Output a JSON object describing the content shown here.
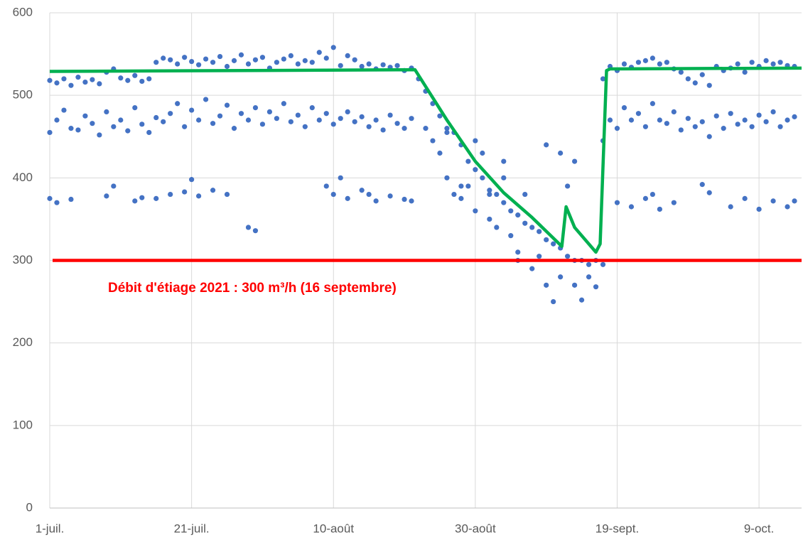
{
  "chart_data": {
    "type": "scatter",
    "color": "#4472c4",
    "xlim": [
      0,
      106
    ],
    "ylim": [
      0,
      600
    ],
    "xticks": [
      {
        "value": 0,
        "label": "1-juil."
      },
      {
        "value": 20,
        "label": "21-juil."
      },
      {
        "value": 40,
        "label": "10-août"
      },
      {
        "value": 60,
        "label": "30-août"
      },
      {
        "value": 80,
        "label": "19-sept."
      },
      {
        "value": 100,
        "label": "9-oct."
      }
    ],
    "yticks": [
      0,
      100,
      200,
      300,
      400,
      500,
      600
    ],
    "grid": true,
    "x": [
      0,
      1,
      2,
      3,
      4,
      5,
      6,
      7,
      8,
      9,
      10,
      11,
      12,
      13,
      14,
      15,
      16,
      17,
      18,
      19,
      20,
      21,
      22,
      23,
      24,
      25,
      26,
      27,
      28,
      29,
      30,
      31,
      32,
      33,
      34,
      35,
      36,
      37,
      38,
      39,
      40,
      41,
      42,
      43,
      44,
      45,
      46,
      47,
      48,
      49,
      50,
      51,
      0,
      1,
      2,
      3,
      4,
      5,
      6,
      7,
      8,
      9,
      10,
      11,
      12,
      13,
      14,
      15,
      16,
      17,
      18,
      19,
      20,
      21,
      22,
      23,
      24,
      25,
      26,
      27,
      28,
      29,
      30,
      31,
      32,
      33,
      34,
      35,
      36,
      37,
      38,
      39,
      40,
      41,
      42,
      43,
      44,
      45,
      46,
      47,
      48,
      49,
      50,
      51,
      0,
      1,
      3,
      8,
      9,
      12,
      13,
      15,
      17,
      19,
      20,
      21,
      23,
      25,
      28,
      29,
      39,
      40,
      41,
      42,
      44,
      45,
      46,
      48,
      50,
      51,
      52,
      53,
      54,
      55,
      56,
      57,
      58,
      59,
      60,
      61,
      62,
      63,
      64,
      65,
      66,
      67,
      68,
      69,
      70,
      71,
      72,
      73,
      74,
      75,
      76,
      77,
      53,
      54,
      55,
      56,
      57,
      58,
      59,
      60,
      61,
      62,
      63,
      64,
      65,
      66,
      67,
      68,
      69,
      70,
      71,
      72,
      73,
      74,
      75,
      76,
      77,
      78,
      56,
      60,
      64,
      70,
      72,
      74,
      62,
      66,
      58,
      78,
      79,
      80,
      81,
      82,
      83,
      84,
      85,
      86,
      87,
      88,
      89,
      90,
      91,
      92,
      93,
      94,
      95,
      96,
      97,
      98,
      99,
      100,
      101,
      102,
      103,
      104,
      105,
      78,
      79,
      80,
      81,
      82,
      83,
      84,
      85,
      86,
      87,
      88,
      89,
      90,
      91,
      92,
      93,
      94,
      95,
      96,
      97,
      98,
      99,
      100,
      101,
      102,
      103,
      104,
      105,
      80,
      82,
      84,
      85,
      86,
      88,
      92,
      93,
      96,
      98,
      100,
      102,
      104,
      105
    ],
    "values": [
      518,
      515,
      520,
      512,
      522,
      516,
      519,
      514,
      528,
      532,
      521,
      518,
      524,
      517,
      520,
      540,
      545,
      543,
      538,
      546,
      541,
      537,
      544,
      540,
      547,
      535,
      542,
      549,
      538,
      543,
      546,
      533,
      540,
      544,
      548,
      538,
      542,
      540,
      552,
      545,
      558,
      536,
      548,
      543,
      535,
      538,
      532,
      537,
      534,
      536,
      530,
      533,
      455,
      470,
      482,
      460,
      458,
      475,
      466,
      452,
      480,
      462,
      470,
      457,
      485,
      465,
      455,
      473,
      468,
      478,
      490,
      462,
      482,
      470,
      495,
      466,
      475,
      488,
      460,
      478,
      470,
      485,
      465,
      480,
      472,
      490,
      468,
      476,
      462,
      485,
      470,
      478,
      465,
      472,
      480,
      468,
      474,
      462,
      470,
      458,
      476,
      466,
      460,
      472,
      375,
      370,
      374,
      378,
      390,
      372,
      376,
      375,
      380,
      383,
      398,
      378,
      385,
      380,
      340,
      336,
      390,
      380,
      400,
      375,
      385,
      380,
      372,
      378,
      374,
      372,
      520,
      505,
      490,
      475,
      460,
      455,
      440,
      420,
      410,
      400,
      385,
      380,
      370,
      360,
      355,
      345,
      340,
      335,
      325,
      320,
      315,
      305,
      300,
      300,
      295,
      300,
      460,
      445,
      430,
      400,
      380,
      375,
      390,
      360,
      430,
      350,
      340,
      400,
      330,
      310,
      380,
      290,
      305,
      270,
      250,
      280,
      390,
      270,
      252,
      280,
      268,
      295,
      455,
      445,
      420,
      440,
      430,
      420,
      380,
      300,
      390,
      520,
      535,
      530,
      538,
      534,
      540,
      542,
      545,
      538,
      540,
      532,
      528,
      520,
      515,
      525,
      512,
      535,
      530,
      533,
      538,
      528,
      540,
      535,
      542,
      538,
      540,
      536,
      535,
      445,
      470,
      460,
      485,
      470,
      478,
      462,
      490,
      470,
      466,
      480,
      458,
      472,
      462,
      468,
      450,
      475,
      460,
      478,
      465,
      470,
      462,
      476,
      468,
      480,
      462,
      470,
      474,
      370,
      365,
      375,
      380,
      362,
      370,
      392,
      382,
      365,
      375,
      362,
      372,
      365,
      372
    ],
    "line": {
      "color": "#00b050",
      "x": [
        0,
        51.5,
        56,
        60,
        64,
        68,
        72.2,
        72.8,
        74,
        77,
        77.6,
        78.5,
        79,
        106
      ],
      "values": [
        529,
        531,
        470,
        420,
        382,
        352,
        317,
        365,
        340,
        310,
        320,
        530,
        532,
        533
      ]
    },
    "threshold": {
      "value": 300,
      "color": "#ff0000"
    },
    "annotation": "Débit d'étiage 2021 : 300 m³/h (16 septembre)"
  }
}
